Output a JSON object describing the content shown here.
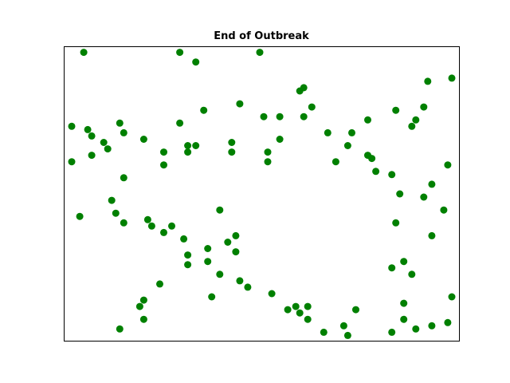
{
  "chart_data": {
    "type": "scatter",
    "title": "End of Outbreak",
    "xlabel": "",
    "ylabel": "",
    "axes_ticks_visible": false,
    "grid": false,
    "legend": "none",
    "marker_color": "#008000",
    "series": [
      {
        "points": [
          {
            "x": 0.7,
            "y": 9.1
          },
          {
            "x": 3.1,
            "y": 9.1
          },
          {
            "x": 5.1,
            "y": 9.1
          },
          {
            "x": 6.2,
            "y": 7.1
          },
          {
            "x": 0.4,
            "y": 6.8
          },
          {
            "x": 0.8,
            "y": 6.7
          },
          {
            "x": 0.9,
            "y": 6.5
          },
          {
            "x": 1.2,
            "y": 6.3
          },
          {
            "x": 1.3,
            "y": 6.1
          },
          {
            "x": 0.9,
            "y": 5.9
          },
          {
            "x": 0.4,
            "y": 5.7
          },
          {
            "x": 1.6,
            "y": 6.9
          },
          {
            "x": 1.7,
            "y": 6.6
          },
          {
            "x": 2.2,
            "y": 6.4
          },
          {
            "x": 2.7,
            "y": 6.0
          },
          {
            "x": 3.3,
            "y": 6.2
          },
          {
            "x": 3.1,
            "y": 6.9
          },
          {
            "x": 3.5,
            "y": 6.2
          },
          {
            "x": 3.7,
            "y": 7.3
          },
          {
            "x": 3.5,
            "y": 8.8
          },
          {
            "x": 3.3,
            "y": 6.0
          },
          {
            "x": 2.7,
            "y": 5.6
          },
          {
            "x": 1.7,
            "y": 5.2
          },
          {
            "x": 1.4,
            "y": 4.5
          },
          {
            "x": 1.5,
            "y": 4.1
          },
          {
            "x": 0.6,
            "y": 4.0
          },
          {
            "x": 1.7,
            "y": 3.8
          },
          {
            "x": 2.3,
            "y": 3.9
          },
          {
            "x": 2.7,
            "y": 3.5
          },
          {
            "x": 2.4,
            "y": 3.7
          },
          {
            "x": 2.9,
            "y": 3.7
          },
          {
            "x": 3.2,
            "y": 3.3
          },
          {
            "x": 3.3,
            "y": 2.8
          },
          {
            "x": 3.3,
            "y": 2.5
          },
          {
            "x": 2.6,
            "y": 1.9
          },
          {
            "x": 2.2,
            "y": 1.4
          },
          {
            "x": 2.1,
            "y": 1.2
          },
          {
            "x": 2.2,
            "y": 0.8
          },
          {
            "x": 1.6,
            "y": 0.5
          },
          {
            "x": 4.1,
            "y": 4.2
          },
          {
            "x": 4.5,
            "y": 3.4
          },
          {
            "x": 3.8,
            "y": 3.0
          },
          {
            "x": 4.5,
            "y": 2.9
          },
          {
            "x": 4.3,
            "y": 3.2
          },
          {
            "x": 3.8,
            "y": 2.6
          },
          {
            "x": 4.1,
            "y": 2.2
          },
          {
            "x": 3.9,
            "y": 1.5
          },
          {
            "x": 4.6,
            "y": 2.0
          },
          {
            "x": 4.8,
            "y": 1.8
          },
          {
            "x": 5.4,
            "y": 1.6
          },
          {
            "x": 5.8,
            "y": 1.1
          },
          {
            "x": 6.0,
            "y": 1.2
          },
          {
            "x": 6.1,
            "y": 1.0
          },
          {
            "x": 6.3,
            "y": 1.2
          },
          {
            "x": 6.3,
            "y": 0.8
          },
          {
            "x": 6.7,
            "y": 0.4
          },
          {
            "x": 7.2,
            "y": 0.6
          },
          {
            "x": 7.5,
            "y": 1.1
          },
          {
            "x": 7.3,
            "y": 0.3
          },
          {
            "x": 8.4,
            "y": 0.4
          },
          {
            "x": 8.7,
            "y": 0.8
          },
          {
            "x": 8.4,
            "y": 2.4
          },
          {
            "x": 8.7,
            "y": 1.3
          },
          {
            "x": 9.0,
            "y": 0.5
          },
          {
            "x": 9.4,
            "y": 0.6
          },
          {
            "x": 9.9,
            "y": 1.5
          },
          {
            "x": 9.8,
            "y": 0.7
          },
          {
            "x": 8.9,
            "y": 2.2
          },
          {
            "x": 8.7,
            "y": 2.6
          },
          {
            "x": 9.4,
            "y": 3.4
          },
          {
            "x": 8.5,
            "y": 3.8
          },
          {
            "x": 8.4,
            "y": 5.3
          },
          {
            "x": 8.6,
            "y": 4.7
          },
          {
            "x": 9.2,
            "y": 4.6
          },
          {
            "x": 9.7,
            "y": 4.2
          },
          {
            "x": 9.3,
            "y": 8.2
          },
          {
            "x": 9.9,
            "y": 8.3
          },
          {
            "x": 9.2,
            "y": 7.4
          },
          {
            "x": 9.0,
            "y": 7.0
          },
          {
            "x": 8.9,
            "y": 6.8
          },
          {
            "x": 8.5,
            "y": 7.3
          },
          {
            "x": 7.8,
            "y": 7.0
          },
          {
            "x": 7.4,
            "y": 6.6
          },
          {
            "x": 7.0,
            "y": 5.7
          },
          {
            "x": 6.8,
            "y": 6.6
          },
          {
            "x": 6.2,
            "y": 8.0
          },
          {
            "x": 6.1,
            "y": 7.9
          },
          {
            "x": 5.6,
            "y": 7.1
          },
          {
            "x": 5.2,
            "y": 7.1
          },
          {
            "x": 4.6,
            "y": 7.5
          },
          {
            "x": 4.4,
            "y": 6.3
          },
          {
            "x": 4.4,
            "y": 6.0
          },
          {
            "x": 5.3,
            "y": 5.7
          },
          {
            "x": 5.3,
            "y": 6.0
          },
          {
            "x": 5.6,
            "y": 6.4
          },
          {
            "x": 6.4,
            "y": 7.4
          },
          {
            "x": 7.3,
            "y": 6.2
          },
          {
            "x": 7.8,
            "y": 5.9
          },
          {
            "x": 7.9,
            "y": 5.8
          },
          {
            "x": 8.0,
            "y": 5.4
          },
          {
            "x": 9.4,
            "y": 5.0
          },
          {
            "x": 9.8,
            "y": 5.6
          }
        ]
      }
    ]
  }
}
